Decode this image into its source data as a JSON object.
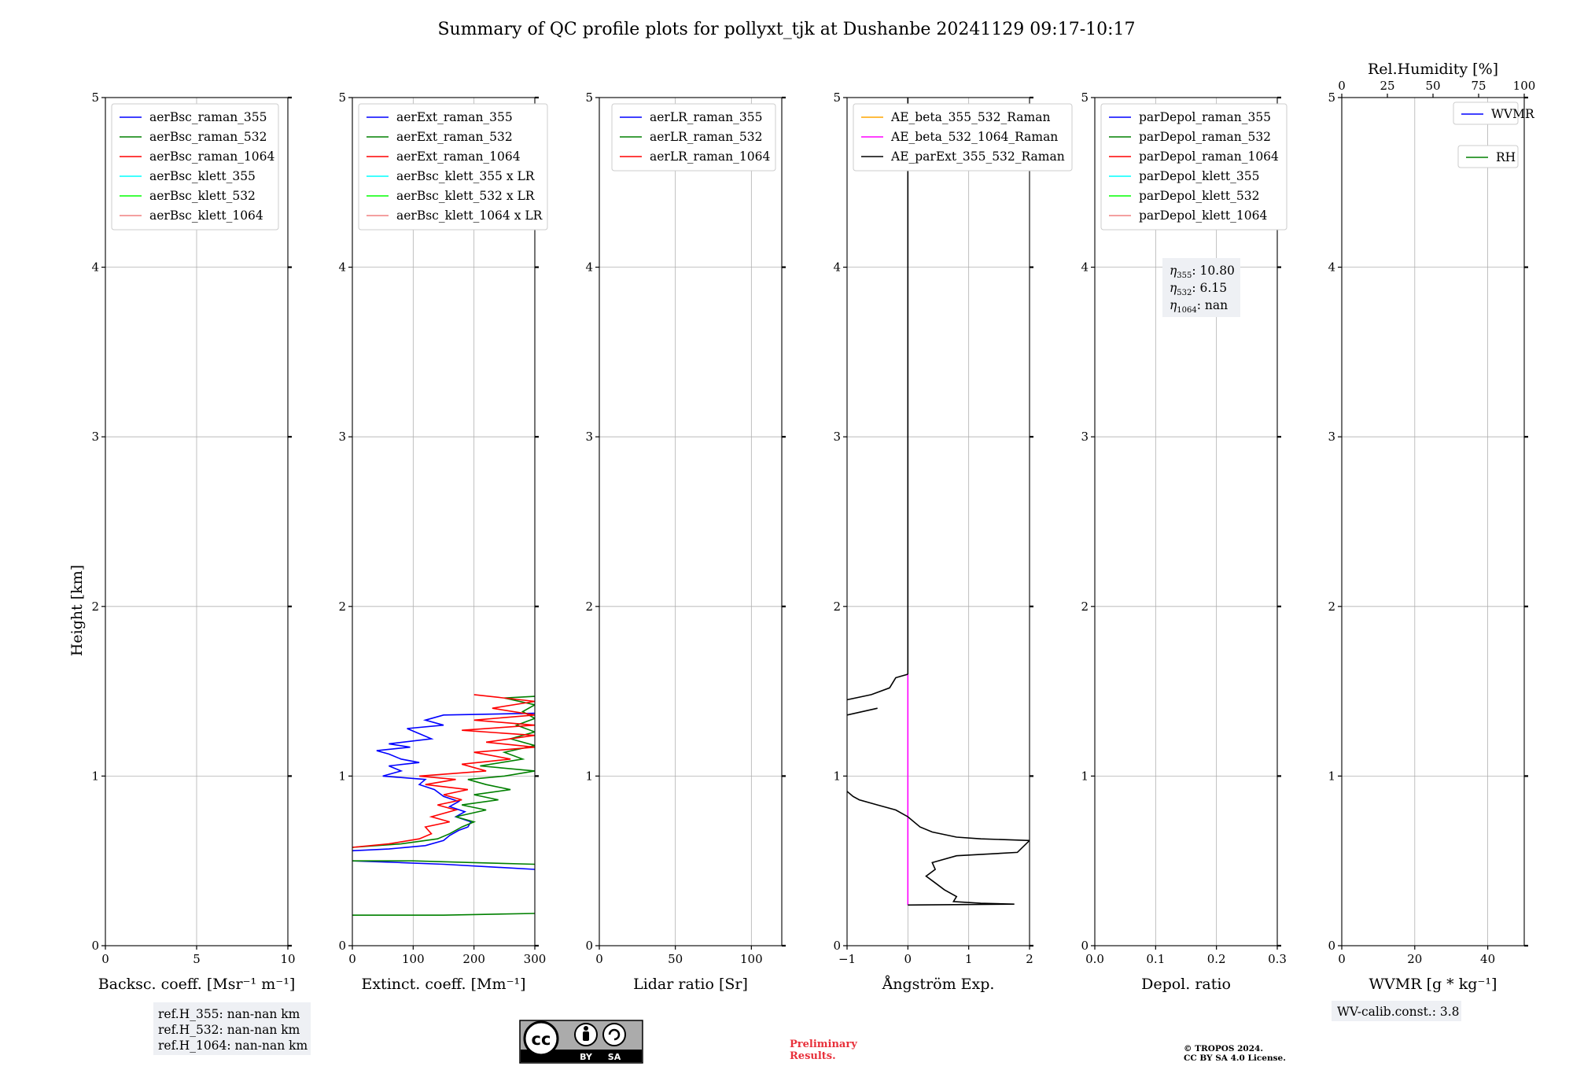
{
  "title": "Summary of QC profile plots for pollyxt_tjk at Dushanbe 20241129 09:17-10:17",
  "y_label": "Height [km]",
  "chart_data": [
    {
      "id": "bsc",
      "type": "line",
      "xlabel": "Backsc. coeff. [Msr⁻¹ m⁻¹]",
      "xlim": [
        0,
        10
      ],
      "xticks": [
        0,
        5,
        10
      ],
      "ylim": [
        0,
        5
      ],
      "yticks": [
        0,
        1,
        2,
        3,
        4,
        5
      ],
      "legend": {
        "placement": "top-left",
        "entries": [
          {
            "label": "aerBsc_raman_355",
            "color": "#0000ff"
          },
          {
            "label": "aerBsc_raman_532",
            "color": "#008000"
          },
          {
            "label": "aerBsc_raman_1064",
            "color": "#ff0000"
          },
          {
            "label": "aerBsc_klett_355",
            "color": "#00ffff"
          },
          {
            "label": "aerBsc_klett_532",
            "color": "#00ff00"
          },
          {
            "label": "aerBsc_klett_1064",
            "color": "#f08080"
          }
        ]
      },
      "series": []
    },
    {
      "id": "ext",
      "type": "line",
      "xlabel": "Extinct. coeff. [Mm⁻¹]",
      "xlim": [
        0,
        300
      ],
      "xticks": [
        0,
        100,
        200,
        300
      ],
      "ylim": [
        0,
        5
      ],
      "yticks": [
        0,
        1,
        2,
        3,
        4,
        5
      ],
      "legend": {
        "placement": "top-left",
        "entries": [
          {
            "label": "aerExt_raman_355",
            "color": "#0000ff"
          },
          {
            "label": "aerExt_raman_532",
            "color": "#008000"
          },
          {
            "label": "aerExt_raman_1064",
            "color": "#ff0000"
          },
          {
            "label": "aerBsc_klett_355 x LR",
            "color": "#00ffff"
          },
          {
            "label": "aerBsc_klett_532 x LR",
            "color": "#00ff00"
          },
          {
            "label": "aerBsc_klett_1064 x LR",
            "color": "#f08080"
          }
        ]
      },
      "series": [
        {
          "name": "aerExt_raman_355",
          "color": "#0000ff",
          "points": [
            [
              0,
              0.56
            ],
            [
              60,
              0.57
            ],
            [
              120,
              0.59
            ],
            [
              150,
              0.62
            ],
            [
              160,
              0.65
            ],
            [
              175,
              0.68
            ],
            [
              190,
              0.7
            ],
            [
              195,
              0.73
            ],
            [
              170,
              0.76
            ],
            [
              185,
              0.79
            ],
            [
              160,
              0.82
            ],
            [
              175,
              0.85
            ],
            [
              150,
              0.88
            ],
            [
              135,
              0.92
            ],
            [
              110,
              0.95
            ],
            [
              120,
              0.98
            ],
            [
              50,
              1.0
            ],
            [
              80,
              1.03
            ],
            [
              60,
              1.06
            ],
            [
              110,
              1.08
            ],
            [
              80,
              1.1
            ],
            [
              60,
              1.13
            ],
            [
              40,
              1.15
            ],
            [
              95,
              1.17
            ],
            [
              60,
              1.19
            ],
            [
              130,
              1.22
            ],
            [
              110,
              1.25
            ],
            [
              90,
              1.28
            ],
            [
              150,
              1.3
            ],
            [
              120,
              1.33
            ],
            [
              150,
              1.36
            ],
            [
              300,
              1.37
            ]
          ]
        },
        {
          "name": "aerExt_raman_532",
          "color": "#008000",
          "points": [
            [
              0,
              0.58
            ],
            [
              80,
              0.6
            ],
            [
              140,
              0.63
            ],
            [
              160,
              0.66
            ],
            [
              180,
              0.7
            ],
            [
              200,
              0.73
            ],
            [
              170,
              0.76
            ],
            [
              220,
              0.8
            ],
            [
              180,
              0.83
            ],
            [
              240,
              0.86
            ],
            [
              200,
              0.89
            ],
            [
              260,
              0.92
            ],
            [
              220,
              0.95
            ],
            [
              190,
              0.98
            ],
            [
              250,
              1.0
            ],
            [
              300,
              1.03
            ],
            [
              210,
              1.06
            ],
            [
              280,
              1.1
            ],
            [
              250,
              1.14
            ],
            [
              300,
              1.18
            ],
            [
              260,
              1.22
            ],
            [
              300,
              1.26
            ],
            [
              270,
              1.3
            ],
            [
              300,
              1.34
            ],
            [
              280,
              1.38
            ],
            [
              300,
              1.42
            ],
            [
              250,
              1.46
            ],
            [
              300,
              1.47
            ]
          ]
        },
        {
          "name": "aerExt_raman_1064",
          "color": "#ff0000",
          "points": [
            [
              0,
              0.58
            ],
            [
              60,
              0.6
            ],
            [
              110,
              0.63
            ],
            [
              130,
              0.66
            ],
            [
              120,
              0.7
            ],
            [
              160,
              0.73
            ],
            [
              130,
              0.76
            ],
            [
              170,
              0.8
            ],
            [
              140,
              0.83
            ],
            [
              180,
              0.86
            ],
            [
              150,
              0.89
            ],
            [
              190,
              0.92
            ],
            [
              120,
              0.95
            ],
            [
              170,
              0.98
            ],
            [
              110,
              1.0
            ],
            [
              220,
              1.03
            ],
            [
              180,
              1.07
            ],
            [
              260,
              1.1
            ],
            [
              200,
              1.14
            ],
            [
              300,
              1.17
            ],
            [
              220,
              1.2
            ],
            [
              300,
              1.24
            ],
            [
              180,
              1.27
            ],
            [
              300,
              1.3
            ],
            [
              200,
              1.33
            ],
            [
              300,
              1.36
            ],
            [
              230,
              1.4
            ],
            [
              300,
              1.44
            ],
            [
              200,
              1.48
            ]
          ]
        },
        {
          "name": "aerExt_raman_355 (low)",
          "color": "#0000ff",
          "points": [
            [
              0,
              0.5
            ],
            [
              80,
              0.49
            ],
            [
              150,
              0.48
            ],
            [
              300,
              0.45
            ]
          ]
        },
        {
          "name": "aerExt_raman_532 (low)",
          "color": "#008000",
          "points": [
            [
              0,
              0.5
            ],
            [
              100,
              0.5
            ],
            [
              200,
              0.49
            ],
            [
              300,
              0.48
            ]
          ]
        },
        {
          "name": "aerExt_raman_532 (near-ground)",
          "color": "#008000",
          "points": [
            [
              0,
              0.18
            ],
            [
              150,
              0.18
            ],
            [
              300,
              0.19
            ]
          ]
        }
      ]
    },
    {
      "id": "lr",
      "type": "line",
      "xlabel": "Lidar ratio [Sr]",
      "xlim": [
        0,
        120
      ],
      "xticks": [
        0,
        50,
        100
      ],
      "ylim": [
        0,
        5
      ],
      "yticks": [
        0,
        1,
        2,
        3,
        4,
        5
      ],
      "legend": {
        "placement": "top-right",
        "entries": [
          {
            "label": "aerLR_raman_355",
            "color": "#0000ff"
          },
          {
            "label": "aerLR_raman_532",
            "color": "#008000"
          },
          {
            "label": "aerLR_raman_1064",
            "color": "#ff0000"
          }
        ]
      },
      "series": []
    },
    {
      "id": "ae",
      "type": "line",
      "xlabel": "Ångström Exp.",
      "xlim": [
        -1,
        2
      ],
      "xticks": [
        -1,
        0,
        1,
        2
      ],
      "xticklabels": [
        "−1",
        "0",
        "1",
        "2"
      ],
      "ylim": [
        0,
        5
      ],
      "yticks": [
        0,
        1,
        2,
        3,
        4,
        5
      ],
      "legend": {
        "placement": "top-left",
        "entries": [
          {
            "label": "AE_beta_355_532_Raman",
            "color": "#ffa500"
          },
          {
            "label": "AE_beta_532_1064_Raman",
            "color": "#ff00ff"
          },
          {
            "label": "AE_parExt_355_532_Raman",
            "color": "#000000"
          }
        ]
      },
      "series": [
        {
          "name": "AE_beta_532_1064_Raman",
          "color": "#ff00ff",
          "points": [
            [
              0,
              0.24
            ],
            [
              0,
              1.6
            ]
          ]
        },
        {
          "name": "AE_parExt_355_532_Raman",
          "color": "#000000",
          "points": [
            [
              0,
              1.6
            ],
            [
              0,
              5.0
            ]
          ]
        },
        {
          "name": "AE_parExt_355_532_Raman (upper)",
          "color": "#000000",
          "points": [
            [
              -1,
              1.45
            ],
            [
              -0.6,
              1.48
            ],
            [
              -0.3,
              1.52
            ],
            [
              -0.2,
              1.58
            ],
            [
              0,
              1.6
            ]
          ]
        },
        {
          "name": "AE_parExt_355_532_Raman (seg)",
          "color": "#000000",
          "points": [
            [
              -1,
              1.36
            ],
            [
              -0.5,
              1.4
            ]
          ]
        },
        {
          "name": "AE_parExt_355_532_Raman (lower)",
          "color": "#000000",
          "points": [
            [
              -1,
              0.91
            ],
            [
              -0.9,
              0.88
            ],
            [
              -0.8,
              0.86
            ],
            [
              -0.5,
              0.83
            ],
            [
              -0.2,
              0.8
            ],
            [
              0,
              0.76
            ],
            [
              0.2,
              0.7
            ],
            [
              0.4,
              0.67
            ],
            [
              0.8,
              0.64
            ],
            [
              1.2,
              0.63
            ],
            [
              2,
              0.62
            ],
            [
              1.8,
              0.55
            ],
            [
              0.8,
              0.53
            ],
            [
              0.4,
              0.49
            ],
            [
              0.45,
              0.45
            ],
            [
              0.3,
              0.41
            ],
            [
              0.45,
              0.37
            ],
            [
              0.6,
              0.33
            ],
            [
              0.8,
              0.29
            ],
            [
              0.75,
              0.26
            ],
            [
              1.2,
              0.25
            ],
            [
              1.75,
              0.245
            ],
            [
              0,
              0.24
            ]
          ]
        }
      ]
    },
    {
      "id": "depol",
      "type": "line",
      "xlabel": "Depol. ratio",
      "xlim": [
        0,
        0.3
      ],
      "xticks": [
        0,
        0.1,
        0.2,
        0.3
      ],
      "xticklabels": [
        "0.0",
        "0.1",
        "0.2",
        "0.3"
      ],
      "ylim": [
        0,
        5
      ],
      "yticks": [
        0,
        1,
        2,
        3,
        4,
        5
      ],
      "legend": {
        "placement": "top-left",
        "entries": [
          {
            "label": "parDepol_raman_355",
            "color": "#0000ff"
          },
          {
            "label": "parDepol_raman_532",
            "color": "#008000"
          },
          {
            "label": "parDepol_raman_1064",
            "color": "#ff0000"
          },
          {
            "label": "parDepol_klett_355",
            "color": "#00ffff"
          },
          {
            "label": "parDepol_klett_532",
            "color": "#00ff00"
          },
          {
            "label": "parDepol_klett_1064",
            "color": "#f08080"
          }
        ]
      },
      "series": []
    },
    {
      "id": "wv",
      "type": "line",
      "xlabel": "WVMR [g * kg⁻¹]",
      "xlim": [
        0,
        50
      ],
      "xticks": [
        0,
        20,
        40
      ],
      "ylim": [
        0,
        5
      ],
      "yticks": [
        0,
        1,
        2,
        3,
        4,
        5
      ],
      "top_axis": {
        "label": "Rel.Humidity [%]",
        "xlim": [
          0,
          100
        ],
        "xticks": [
          0,
          25,
          50,
          75,
          100
        ]
      },
      "legend": {
        "placement": "top-right",
        "entries": [
          {
            "label": "WVMR",
            "color": "#0000ff"
          },
          {
            "label": "RH",
            "color": "#008000"
          }
        ]
      },
      "series": []
    }
  ],
  "eta_box": {
    "lines": [
      {
        "sym": "η",
        "sub": "355",
        "value": ": 10.80"
      },
      {
        "sym": "η",
        "sub": "532",
        "value": ": 6.15"
      },
      {
        "sym": "η",
        "sub": "1064",
        "value": ": nan"
      }
    ]
  },
  "ref_box": {
    "lines": [
      "ref.H_355: nan-nan km",
      "ref.H_532: nan-nan km",
      "ref.H_1064: nan-nan km"
    ]
  },
  "wv_calib": "WV-calib.const.: 3.8",
  "license_badge": {
    "cc": "cc",
    "by": "BY",
    "sa": "SA"
  },
  "preliminary": [
    "Preliminary",
    "Results."
  ],
  "copyright": [
    "© TROPOS 2024.",
    "CC BY SA 4.0 License."
  ]
}
